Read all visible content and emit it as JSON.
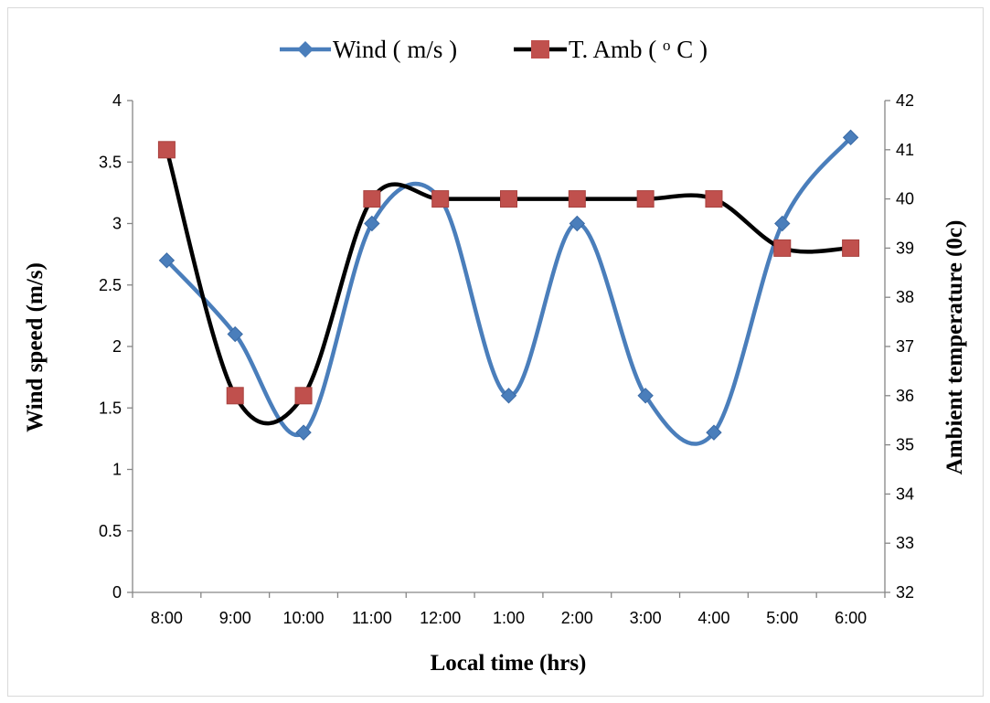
{
  "chart_data": {
    "type": "line",
    "smooth": true,
    "categories": [
      "8:00",
      "9:00",
      "10:00",
      "11:00",
      "12:00",
      "1:00",
      "2:00",
      "3:00",
      "4:00",
      "5:00",
      "6:00"
    ],
    "series": [
      {
        "name": "Wind ( m/s )",
        "axis": "left",
        "color": "#4a7ebb",
        "marker": "diamond",
        "values": [
          2.7,
          2.1,
          1.3,
          3.0,
          3.2,
          1.6,
          3.0,
          1.6,
          1.3,
          3.0,
          3.7
        ]
      },
      {
        "name": "T. Amb ( ",
        "name_sup": "o",
        "name_end": " C )",
        "axis": "right",
        "color": "#000000",
        "marker_color": "#c0504d",
        "marker": "square",
        "values": [
          41,
          36,
          36,
          40,
          40,
          40,
          40,
          40,
          40,
          39,
          39
        ]
      }
    ],
    "xlabel": "Local time (hrs)",
    "ylabel": "Wind speed (m/s)",
    "y2label": "Ambient temperature (0c)",
    "ylim": [
      0,
      4
    ],
    "yticks": [
      "0",
      "0.5",
      "1",
      "1.5",
      "2",
      "2.5",
      "3",
      "3.5",
      "4"
    ],
    "y2lim": [
      32,
      42
    ],
    "y2ticks": [
      "32",
      "33",
      "34",
      "35",
      "36",
      "37",
      "38",
      "39",
      "40",
      "41",
      "42"
    ],
    "grid": false,
    "legend": "top"
  }
}
